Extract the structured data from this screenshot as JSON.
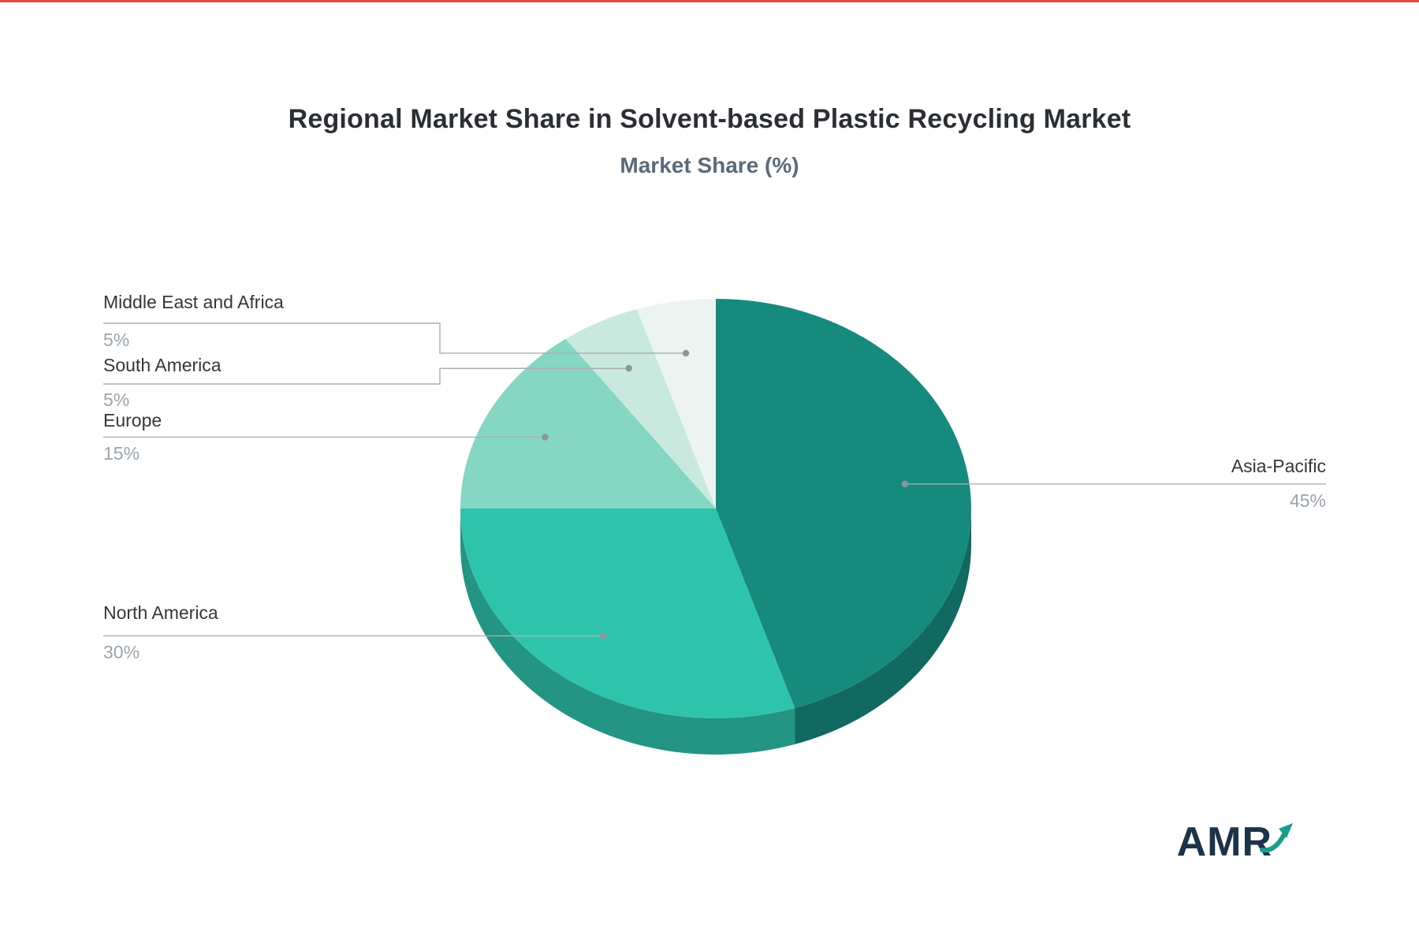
{
  "chart_data": {
    "type": "pie",
    "title": "Regional Market Share in Solvent-based Plastic Recycling Market",
    "subtitle": "Market Share (%)",
    "categories": [
      "Asia-Pacific",
      "North America",
      "Europe",
      "South America",
      "Middle East and Africa"
    ],
    "values": [
      45,
      30,
      15,
      5,
      5
    ],
    "unit": "%",
    "legend_position": "none",
    "style": "pie-3d",
    "start_angle_deg": 0,
    "direction": "clockwise",
    "slices": [
      {
        "label": "Asia-Pacific",
        "value": 45,
        "pct_label": "45%",
        "color": "#178a7e"
      },
      {
        "label": "North America",
        "value": 30,
        "pct_label": "30%",
        "color": "#2ec4ab"
      },
      {
        "label": "Europe",
        "value": 15,
        "pct_label": "15%",
        "color": "#85d6c3"
      },
      {
        "label": "South America",
        "value": 5,
        "pct_label": "5%",
        "color": "#c9e9df"
      },
      {
        "label": "Middle East and Africa",
        "value": 5,
        "pct_label": "5%",
        "color": "#ecf4f1"
      }
    ],
    "leader_line_color": "#a9aeb4",
    "label_color": "#32373c",
    "value_color": "#9aa3ad"
  },
  "branding": {
    "logo_text": "AMR"
  }
}
